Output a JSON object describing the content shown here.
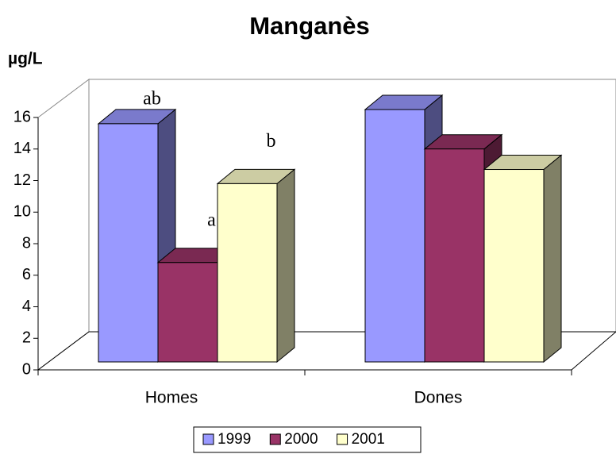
{
  "chart_data": {
    "type": "bar3d",
    "title": "Manganès",
    "y_label": "µg/L",
    "categories": [
      "Homes",
      "Dones"
    ],
    "series": [
      {
        "name": "1999",
        "color": "#9999ff",
        "values": [
          15.1,
          16.0
        ]
      },
      {
        "name": "2000",
        "color": "#993366",
        "values": [
          6.3,
          13.5
        ]
      },
      {
        "name": "2001",
        "color": "#ffffcc",
        "values": [
          11.3,
          12.2
        ]
      }
    ],
    "annotations": [
      "ab",
      "a",
      "b"
    ],
    "ylim": [
      0,
      16
    ],
    "yticks": [
      0,
      2,
      4,
      6,
      8,
      10,
      12,
      14,
      16
    ],
    "grid": false
  }
}
